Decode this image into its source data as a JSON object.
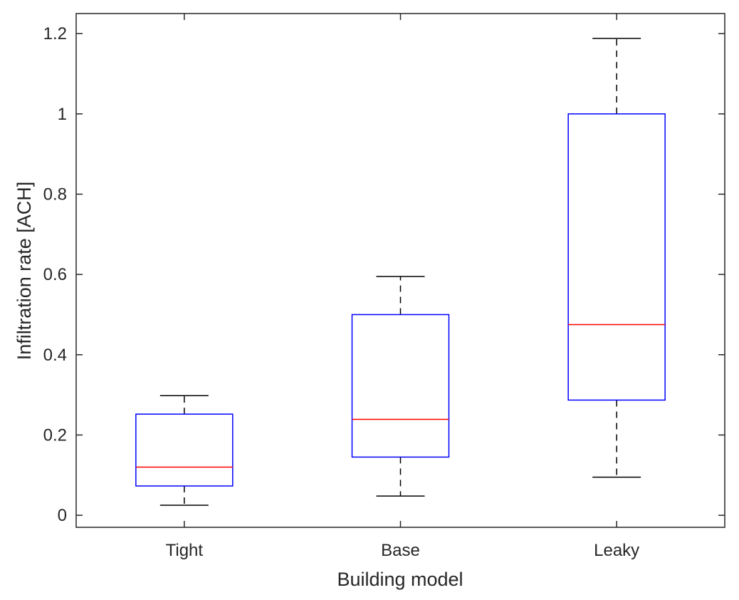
{
  "chart_data": {
    "type": "boxplot",
    "title": "",
    "xlabel": "Building model",
    "ylabel": "Infiltration rate [ACH]",
    "ylim": [
      -0.03,
      1.25
    ],
    "yticks": [
      0,
      0.2,
      0.4,
      0.6,
      0.8,
      1,
      1.2
    ],
    "ytick_labels": [
      "0",
      "0.2",
      "0.4",
      "0.6",
      "0.8",
      "1",
      "1.2"
    ],
    "categories": [
      "Tight",
      "Base",
      "Leaky"
    ],
    "boxes": [
      {
        "category": "Tight",
        "whisker_low": 0.025,
        "q1": 0.073,
        "median": 0.12,
        "q3": 0.252,
        "whisker_high": 0.298
      },
      {
        "category": "Base",
        "whisker_low": 0.048,
        "q1": 0.145,
        "median": 0.239,
        "q3": 0.5,
        "whisker_high": 0.595
      },
      {
        "category": "Leaky",
        "whisker_low": 0.095,
        "q1": 0.287,
        "median": 0.475,
        "q3": 1.0,
        "whisker_high": 1.188
      }
    ],
    "grid": false,
    "colors": {
      "box": "#0000ff",
      "median": "#ff0000",
      "whisker": "#000000",
      "axis": "#262626"
    }
  }
}
